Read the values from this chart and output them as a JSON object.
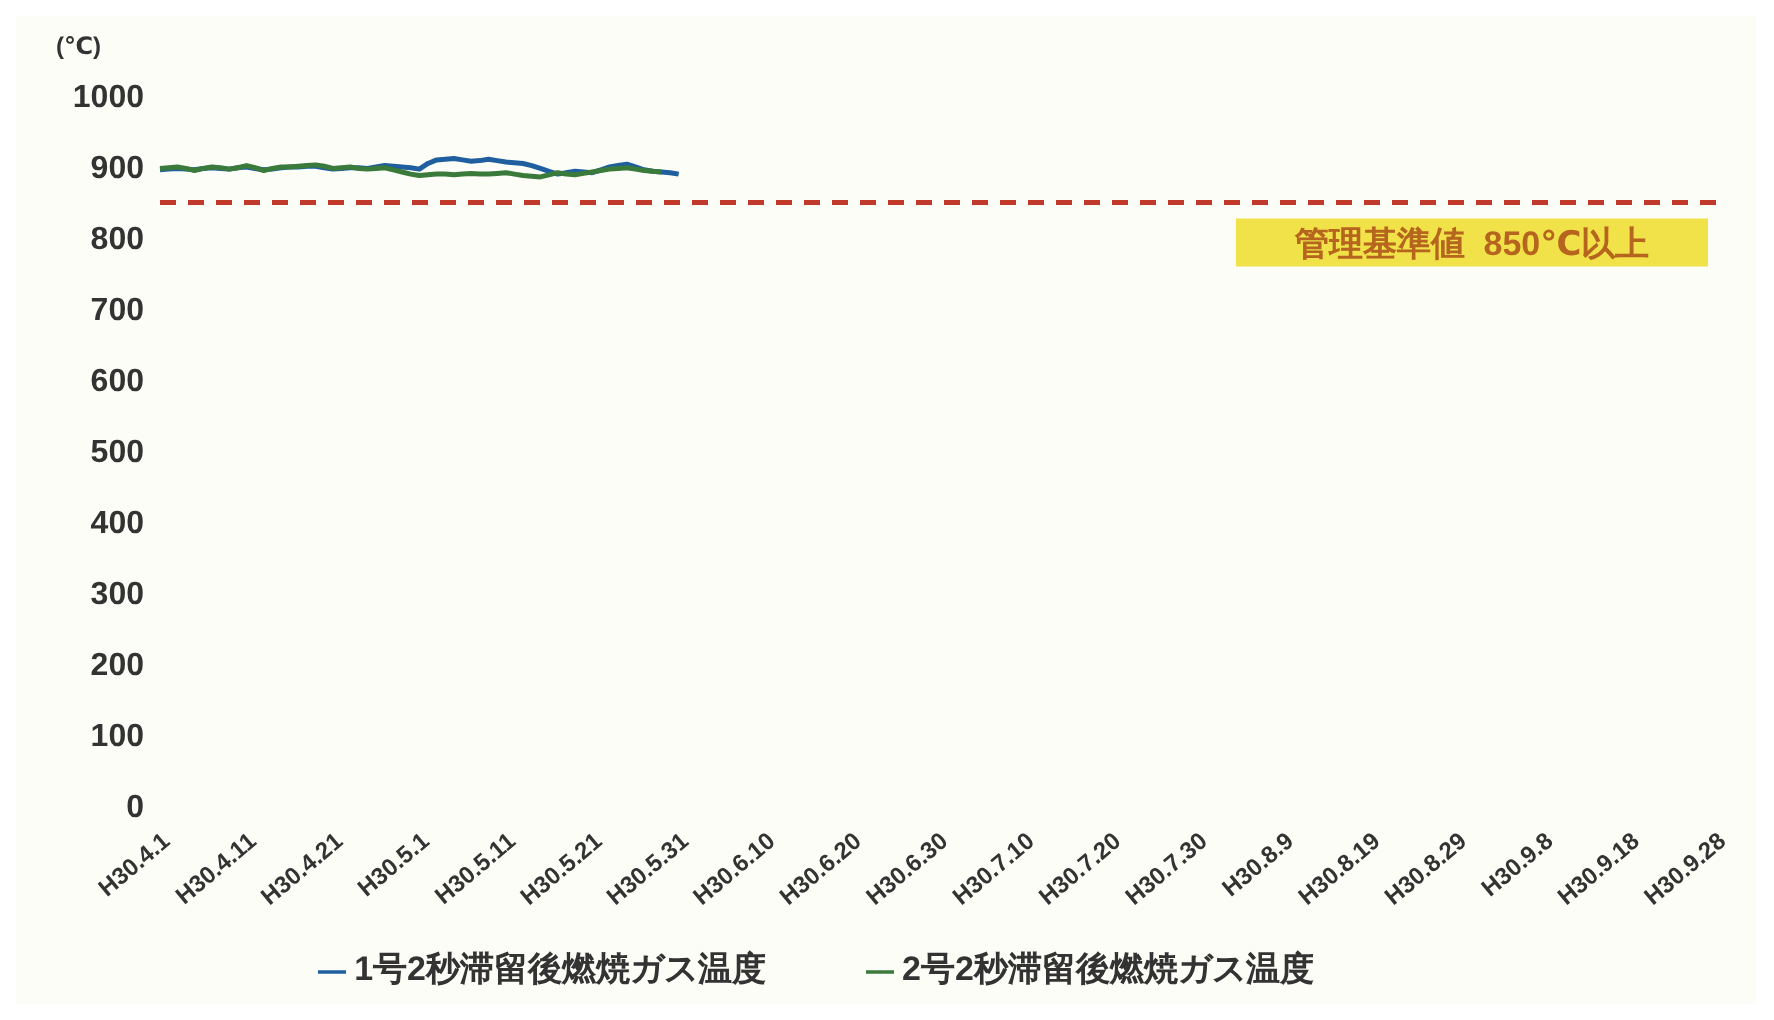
{
  "chart_data": {
    "type": "line",
    "ylabel": "(℃)",
    "categories": [
      "H30.4.1",
      null,
      null,
      null,
      null,
      null,
      null,
      null,
      null,
      null,
      "H30.4.11",
      null,
      null,
      null,
      null,
      null,
      null,
      null,
      null,
      null,
      "H30.4.21",
      null,
      null,
      null,
      null,
      null,
      null,
      null,
      null,
      null,
      "H30.5.1",
      null,
      null,
      null,
      null,
      null,
      null,
      null,
      null,
      null,
      "H30.5.11",
      null,
      null,
      null,
      null,
      null,
      null,
      null,
      null,
      null,
      "H30.5.21",
      null,
      null,
      null,
      null,
      null,
      null,
      null,
      null,
      null,
      "H30.5.31",
      null,
      null,
      null,
      null,
      null,
      null,
      null,
      null,
      null,
      "H30.6.10",
      null,
      null,
      null,
      null,
      null,
      null,
      null,
      null,
      null,
      "H30.6.20",
      null,
      null,
      null,
      null,
      null,
      null,
      null,
      null,
      null,
      "H30.6.30",
      null,
      null,
      null,
      null,
      null,
      null,
      null,
      null,
      null,
      "H30.7.10",
      null,
      null,
      null,
      null,
      null,
      null,
      null,
      null,
      null,
      "H30.7.20",
      null,
      null,
      null,
      null,
      null,
      null,
      null,
      null,
      null,
      "H30.7.30",
      null,
      null,
      null,
      null,
      null,
      null,
      null,
      null,
      null,
      "H30.8.9",
      null,
      null,
      null,
      null,
      null,
      null,
      null,
      null,
      null,
      "H30.8.19",
      null,
      null,
      null,
      null,
      null,
      null,
      null,
      null,
      null,
      "H30.8.29",
      null,
      null,
      null,
      null,
      null,
      null,
      null,
      null,
      null,
      "H30.9.8",
      null,
      null,
      null,
      null,
      null,
      null,
      null,
      null,
      null,
      "H30.9.18",
      null,
      null,
      null,
      null,
      null,
      null,
      null,
      null,
      null,
      "H30.9.28"
    ],
    "ylim": [
      0,
      1000
    ],
    "yticks": [
      0,
      100,
      200,
      300,
      400,
      500,
      600,
      700,
      800,
      900,
      1000
    ],
    "series": [
      {
        "name": "1号2秒滞留後燃焼ガス温度",
        "color": "#1f5fa0",
        "values": [
          896,
          897,
          898,
          897,
          896,
          898,
          899,
          898,
          897,
          899,
          900,
          898,
          896,
          897,
          899,
          900,
          900,
          901,
          901,
          899,
          897,
          898,
          899,
          899,
          898,
          900,
          902,
          901,
          900,
          899,
          897,
          905,
          910,
          911,
          912,
          910,
          908,
          909,
          911,
          909,
          907,
          906,
          905,
          902,
          898,
          894,
          890,
          892,
          894,
          893,
          892,
          896,
          900,
          902,
          904,
          900,
          896,
          894,
          893,
          892,
          890,
          null,
          null,
          null,
          null,
          null,
          null,
          null,
          null,
          null,
          null,
          null,
          null,
          null,
          null,
          null,
          null,
          null,
          null,
          null,
          null,
          null,
          null,
          null,
          null,
          null,
          null,
          null,
          null,
          null,
          null,
          null,
          null,
          null,
          null,
          null,
          null,
          null,
          null,
          null,
          null,
          null,
          null,
          null,
          null,
          null,
          null,
          null,
          null,
          null,
          null,
          null,
          null,
          null,
          null,
          null,
          null,
          null,
          null,
          null,
          null,
          null,
          null,
          null,
          null,
          null,
          null,
          null,
          null,
          null,
          null,
          null,
          null,
          null,
          null,
          null,
          null,
          null,
          null,
          null,
          null,
          null,
          null,
          null,
          null,
          null,
          null,
          null,
          null,
          null,
          null,
          null,
          null,
          null,
          null,
          null,
          null,
          null,
          null,
          null,
          null,
          null,
          null,
          null,
          null,
          null,
          null,
          null,
          null,
          null,
          null,
          null,
          null,
          null,
          null,
          null,
          null,
          null,
          null,
          null,
          null
        ]
      },
      {
        "name": "2号2秒滞留後燃焼ガス温度",
        "color": "#3a7a3a",
        "values": [
          898,
          899,
          900,
          898,
          895,
          898,
          900,
          899,
          897,
          899,
          902,
          899,
          895,
          898,
          900,
          900,
          901,
          902,
          903,
          901,
          898,
          899,
          900,
          898,
          897,
          898,
          899,
          896,
          893,
          890,
          888,
          889,
          890,
          890,
          889,
          890,
          891,
          890,
          890,
          891,
          892,
          890,
          888,
          887,
          886,
          889,
          892,
          890,
          889,
          891,
          893,
          895,
          897,
          898,
          899,
          897,
          895,
          894,
          893,
          null,
          null,
          null,
          null,
          null,
          null,
          null,
          null,
          null,
          null,
          null,
          null,
          null,
          null,
          null,
          null,
          null,
          null,
          null,
          null,
          null,
          null,
          null,
          null,
          null,
          null,
          null,
          null,
          null,
          null,
          null,
          null,
          null,
          null,
          null,
          null,
          null,
          null,
          null,
          null,
          null,
          null,
          null,
          null,
          null,
          null,
          null,
          null,
          null,
          null,
          null,
          null,
          null,
          null,
          null,
          null,
          null,
          null,
          null,
          null,
          null,
          null,
          null,
          null,
          null,
          null,
          null,
          null,
          null,
          null,
          null,
          null,
          null,
          null,
          null,
          null,
          null,
          null,
          null,
          null,
          null,
          null,
          null,
          null,
          null,
          null,
          null,
          null,
          null,
          null,
          null,
          null,
          null,
          null,
          null,
          null,
          null,
          null,
          null,
          null,
          null,
          null,
          null,
          null,
          null,
          null,
          null,
          null,
          null,
          null,
          null,
          null,
          null,
          null,
          null,
          null,
          null,
          null,
          null,
          null,
          null,
          null
        ]
      }
    ],
    "ref_lines": [
      {
        "axis": "y",
        "value": 850,
        "label": "管理基準値  850℃以上",
        "color": "#c0392b",
        "line_style": "dashed"
      }
    ],
    "marker": "none",
    "line_style": "solid",
    "legend": "bottom"
  }
}
